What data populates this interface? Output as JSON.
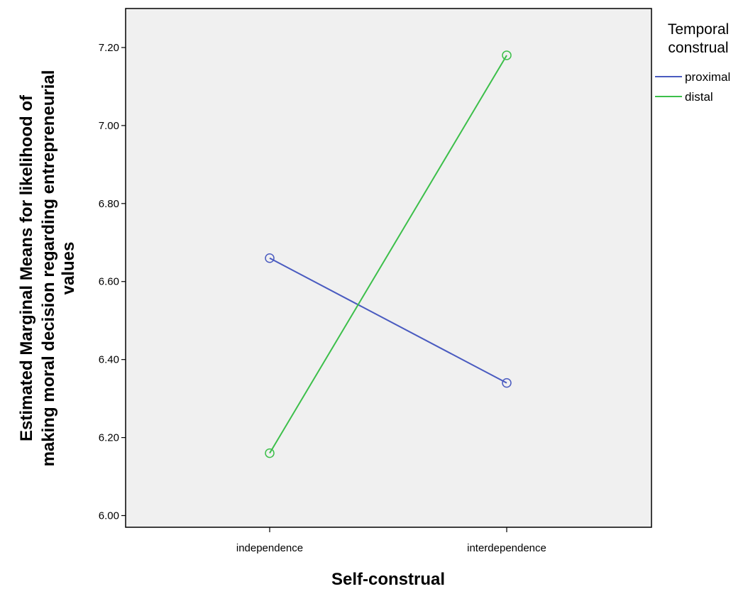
{
  "chart_data": {
    "type": "line",
    "xlabel": "Self-construal",
    "ylabel_lines": [
      "Estimated Marginal Means for likelihood of",
      "making moral decision regarding entrepreneurial",
      "values"
    ],
    "categories": [
      "independence",
      "interdependence"
    ],
    "ylim": [
      5.97,
      7.3
    ],
    "yticks": [
      "6.00",
      "6.20",
      "6.40",
      "6.60",
      "6.80",
      "7.00",
      "7.20"
    ],
    "grid": false,
    "legend": {
      "title_lines": [
        "Temporal",
        "construal"
      ],
      "position": "right"
    },
    "series": [
      {
        "name": "proximal",
        "values": [
          6.66,
          6.34
        ],
        "color": "#4a5bc0"
      },
      {
        "name": "distal",
        "values": [
          6.16,
          7.18
        ],
        "color": "#3cbf4a"
      }
    ],
    "plot_background": "#f0f0f0"
  }
}
